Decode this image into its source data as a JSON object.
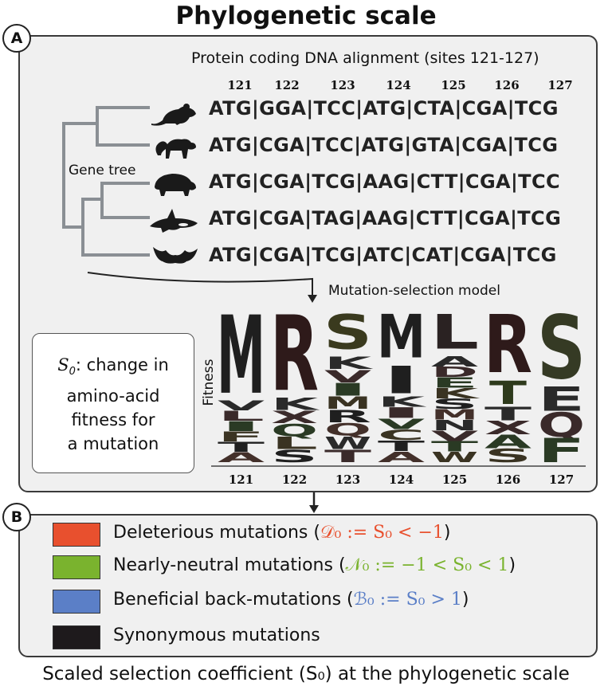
{
  "title": "Phylogenetic scale",
  "panel_a": {
    "badge": "A",
    "alignment_title": "Protein coding DNA alignment (sites 121-127)",
    "sites": [
      "121",
      "122",
      "123",
      "124",
      "125",
      "126",
      "127"
    ],
    "sequences": [
      "ATG|GGA|TCC|ATG|CTA|CGA|TCG",
      "ATG|CGA|TCC|ATG|GTA|CGA|TCG",
      "ATG|CGA|TCG|AAG|CTT|CGA|TCC",
      "ATG|CGA|TAG|AAG|CTT|CGA|TCG",
      "ATG|CGA|TCG|ATC|CAT|CGA|TCG"
    ],
    "species_icons": [
      "mouse-icon",
      "monkey-icon",
      "armadillo-icon",
      "orca-icon",
      "bat-icon"
    ],
    "gene_tree_label": "Gene tree",
    "model_label": "Mutation-selection model",
    "s0_symbol": "S",
    "s0_sub": "0",
    "s0_lines": [
      ": change in",
      "amino-acid",
      "fitness for",
      "a mutation"
    ],
    "fitness_label": "Fitness",
    "logo_sites": [
      "121",
      "122",
      "123",
      "124",
      "125",
      "126",
      "127"
    ],
    "logo_top_letters": [
      "M",
      "R",
      "S",
      "M",
      "L",
      "R",
      "S"
    ],
    "logo_letter_colors": [
      "#1f1f1f",
      "#2e1a1a",
      "#3a3a1e",
      "#1f1f1f",
      "#2a2222",
      "#2e1a1a",
      "#353a24"
    ]
  },
  "panel_b": {
    "badge": "B",
    "legend": [
      {
        "color": "#e8502e",
        "label": "Deleterious mutations (",
        "math": "𝒟₀ := S₀ < −1",
        "math_color": "#e8502e",
        "close": ")"
      },
      {
        "color": "#7ab32e",
        "label": "Nearly-neutral mutations (",
        "math": "𝒩₀ := −1 < S₀ < 1",
        "math_color": "#7ab32e",
        "close": ")"
      },
      {
        "color": "#5b7fc7",
        "label": "Beneficial back-mutations (",
        "math": "ℬ₀ := S₀ > 1",
        "math_color": "#5b7fc7",
        "close": ")"
      },
      {
        "color": "#1e1a1c",
        "label": "Synonymous mutations",
        "math": "",
        "math_color": "#1e1a1c",
        "close": ""
      }
    ]
  },
  "caption": "Scaled selection coefficient (S₀) at the phylogenetic scale"
}
